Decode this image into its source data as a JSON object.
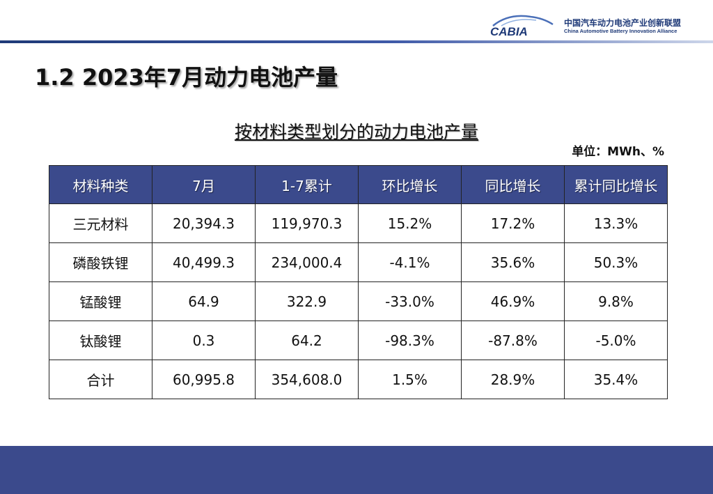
{
  "logo": {
    "brand": "CABIA",
    "name_cn": "中国汽车动力电池产业创新联盟",
    "name_en": "China Automotive Battery Innovation Alliance"
  },
  "page_title": "1.2 2023年7月动力电池产量",
  "table_title": "按材料类型划分的动力电池产量",
  "unit": "单位：MWh、%",
  "table": {
    "headers": [
      "材料种类",
      "7月",
      "1-7累计",
      "环比增长",
      "同比增长",
      "累计同比增长"
    ],
    "rows": [
      [
        "三元材料",
        "20,394.3",
        "119,970.3",
        "15.2%",
        "17.2%",
        "13.3%"
      ],
      [
        "磷酸铁锂",
        "40,499.3",
        "234,000.4",
        "-4.1%",
        "35.6%",
        "50.3%"
      ],
      [
        "锰酸锂",
        "64.9",
        "322.9",
        "-33.0%",
        "46.9%",
        "9.8%"
      ],
      [
        "钛酸锂",
        "0.3",
        "64.2",
        "-98.3%",
        "-87.8%",
        "-5.0%"
      ],
      [
        "合计",
        "60,995.8",
        "354,608.0",
        "1.5%",
        "28.9%",
        "35.4%"
      ]
    ]
  },
  "colors": {
    "header_bg": "#3b4a8c",
    "brand_blue": "#1f3a78",
    "footer_bg": "#3b4a8c"
  }
}
